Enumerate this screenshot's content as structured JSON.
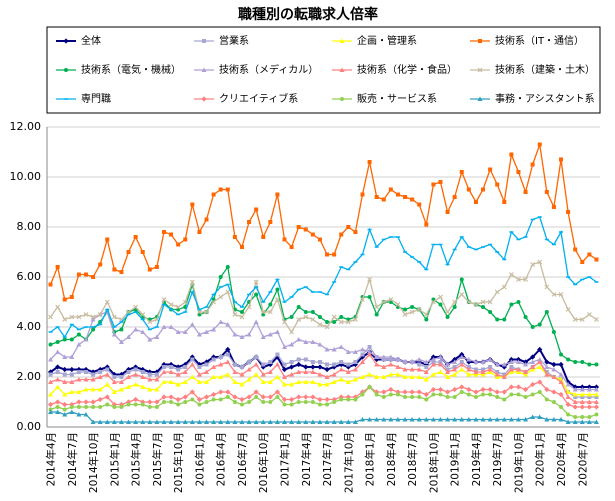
{
  "chart_data": {
    "type": "line",
    "title": "職種別の転職求人倍率",
    "categories": [
      "2014年4月",
      null,
      null,
      "2014年7月",
      null,
      null,
      "2014年10月",
      null,
      null,
      "2015年1月",
      null,
      null,
      "2015年4月",
      null,
      null,
      "2015年7月",
      null,
      null,
      "2015年10月",
      null,
      null,
      "2016年1月",
      null,
      null,
      "2016年4月",
      null,
      null,
      "2016年7月",
      null,
      null,
      "2016年10月",
      null,
      null,
      "2017年1月",
      null,
      null,
      "2017年4月",
      null,
      null,
      "2017年7月",
      null,
      null,
      "2017年10月",
      null,
      null,
      "2018年1月",
      null,
      null,
      "2018年4月",
      null,
      null,
      "2018年7月",
      null,
      null,
      "2018年10月",
      null,
      null,
      "2019年1月",
      null,
      null,
      "2019年4月",
      null,
      null,
      "2019年7月",
      null,
      null,
      "2019年10月",
      null,
      null,
      "2020年1月",
      null,
      null,
      "2020年4月",
      null,
      null,
      "2020年7月",
      null,
      null
    ],
    "ylim": [
      0,
      12
    ],
    "yticks": [
      {
        "value": 0,
        "label": "0.00"
      },
      {
        "value": 2,
        "label": "2.00"
      },
      {
        "value": 4,
        "label": "4.00"
      },
      {
        "value": 6,
        "label": "6.00"
      },
      {
        "value": 8,
        "label": "8.00"
      },
      {
        "value": 10,
        "label": "10.00"
      },
      {
        "value": 12,
        "label": "12.00"
      }
    ],
    "grid": true,
    "series": [
      {
        "name": "全体",
        "color": "#000080",
        "marker": "diamond",
        "values": [
          2.2,
          2.4,
          2.3,
          2.3,
          2.3,
          2.3,
          2.2,
          2.3,
          2.4,
          2.1,
          2.1,
          2.3,
          2.4,
          2.3,
          2.2,
          2.2,
          2.5,
          2.5,
          2.4,
          2.5,
          2.8,
          2.5,
          2.6,
          2.8,
          2.8,
          3.1,
          2.5,
          2.4,
          2.6,
          2.8,
          2.4,
          2.5,
          2.8,
          2.3,
          2.4,
          2.5,
          2.4,
          2.4,
          2.4,
          2.3,
          2.4,
          2.5,
          2.4,
          2.5,
          2.8,
          3.0,
          2.7,
          2.7,
          2.7,
          2.7,
          2.6,
          2.6,
          2.6,
          2.5,
          2.8,
          2.8,
          2.5,
          2.7,
          2.9,
          2.6,
          2.6,
          2.6,
          2.7,
          2.5,
          2.4,
          2.7,
          2.7,
          2.6,
          2.8,
          3.1,
          2.6,
          2.5,
          2.5,
          1.8,
          1.6,
          1.6,
          1.6,
          1.6
        ]
      },
      {
        "name": "営業系",
        "color": "#a6a6d2",
        "marker": "square",
        "values": [
          2.1,
          2.2,
          2.1,
          2.1,
          2.2,
          2.2,
          2.1,
          2.2,
          2.3,
          2.0,
          2.0,
          2.2,
          2.3,
          2.2,
          2.1,
          2.1,
          2.4,
          2.4,
          2.3,
          2.4,
          2.7,
          2.4,
          2.5,
          2.7,
          2.8,
          2.9,
          2.5,
          2.4,
          2.6,
          2.8,
          2.5,
          2.6,
          2.9,
          2.5,
          2.6,
          2.7,
          2.7,
          2.6,
          2.6,
          2.5,
          2.5,
          2.6,
          2.5,
          2.6,
          2.9,
          3.2,
          2.8,
          2.7,
          2.7,
          2.7,
          2.6,
          2.6,
          2.5,
          2.4,
          2.6,
          2.6,
          2.3,
          2.4,
          2.6,
          2.4,
          2.3,
          2.3,
          2.4,
          2.2,
          2.1,
          2.4,
          2.3,
          2.2,
          2.4,
          2.6,
          2.2,
          2.0,
          1.9,
          1.4,
          1.2,
          1.2,
          1.2,
          1.2
        ]
      },
      {
        "name": "企画・管理系",
        "color": "#ffff00",
        "marker": "triangle",
        "values": [
          1.3,
          1.6,
          1.3,
          1.4,
          1.4,
          1.5,
          1.5,
          1.5,
          1.7,
          1.4,
          1.5,
          1.6,
          1.7,
          1.6,
          1.5,
          1.5,
          1.8,
          1.8,
          1.7,
          1.8,
          2.0,
          1.8,
          1.8,
          2.0,
          2.0,
          2.1,
          1.8,
          1.7,
          1.9,
          2.1,
          1.8,
          1.8,
          2.0,
          1.7,
          1.7,
          1.8,
          1.8,
          1.8,
          1.7,
          1.7,
          1.8,
          1.9,
          1.8,
          1.9,
          2.0,
          2.1,
          2.0,
          2.0,
          2.1,
          2.1,
          2.0,
          2.0,
          2.0,
          1.9,
          2.1,
          2.2,
          2.0,
          2.1,
          2.3,
          2.1,
          2.1,
          2.1,
          2.2,
          2.0,
          2.0,
          2.2,
          2.2,
          2.1,
          2.3,
          2.4,
          2.1,
          2.0,
          1.9,
          1.4,
          1.3,
          1.3,
          1.3,
          1.3
        ]
      },
      {
        "name": "技術系（IT・通信）",
        "color": "#ff6600",
        "marker": "square",
        "values": [
          5.7,
          6.4,
          5.1,
          5.2,
          6.1,
          6.1,
          6.0,
          6.5,
          7.5,
          6.3,
          6.2,
          7.0,
          7.6,
          7.0,
          6.3,
          6.4,
          7.8,
          7.7,
          7.3,
          7.5,
          8.9,
          7.8,
          8.3,
          9.3,
          9.5,
          9.5,
          7.6,
          7.2,
          8.2,
          8.7,
          7.6,
          8.2,
          9.3,
          7.5,
          7.2,
          8.0,
          7.9,
          7.7,
          7.5,
          6.9,
          6.9,
          7.7,
          8.0,
          7.8,
          9.3,
          10.6,
          9.2,
          9.1,
          9.5,
          9.3,
          9.2,
          9.1,
          8.9,
          8.1,
          9.7,
          9.8,
          8.6,
          9.2,
          10.2,
          9.5,
          9.0,
          9.5,
          10.3,
          9.7,
          9.0,
          10.9,
          10.2,
          9.4,
          10.5,
          11.3,
          9.4,
          8.8,
          10.7,
          8.6,
          7.1,
          6.6,
          6.9,
          6.7
        ]
      },
      {
        "name": "技術系（電気・機械）",
        "color": "#00b050",
        "marker": "circle",
        "values": [
          3.3,
          3.4,
          3.5,
          3.5,
          3.7,
          3.5,
          3.9,
          4.2,
          4.6,
          3.8,
          3.9,
          4.6,
          4.7,
          4.4,
          4.3,
          4.4,
          5.0,
          4.7,
          4.7,
          4.8,
          5.7,
          4.5,
          4.6,
          5.1,
          6.0,
          6.4,
          4.7,
          4.6,
          5.0,
          5.3,
          4.5,
          4.9,
          5.5,
          4.3,
          4.4,
          4.8,
          4.6,
          4.6,
          4.4,
          4.2,
          4.2,
          4.4,
          4.3,
          4.4,
          5.2,
          5.2,
          4.5,
          5.0,
          5.0,
          4.8,
          4.7,
          4.8,
          4.7,
          4.3,
          5.1,
          4.9,
          4.4,
          4.8,
          5.9,
          5.0,
          4.9,
          4.8,
          4.6,
          4.3,
          4.3,
          4.9,
          5.0,
          4.4,
          4.0,
          4.1,
          4.6,
          3.8,
          2.9,
          2.7,
          2.6,
          2.6,
          2.5,
          2.5
        ]
      },
      {
        "name": "技術系（メディカル）",
        "color": "#b0a0d8",
        "marker": "triangle",
        "values": [
          2.7,
          3.0,
          2.8,
          2.8,
          3.3,
          3.5,
          4.3,
          4.5,
          4.6,
          3.7,
          3.4,
          3.6,
          3.9,
          3.8,
          3.5,
          3.6,
          4.0,
          4.0,
          3.8,
          3.8,
          4.1,
          3.7,
          3.8,
          3.9,
          4.2,
          4.1,
          3.7,
          3.6,
          3.7,
          4.2,
          3.6,
          3.7,
          3.8,
          3.2,
          3.3,
          3.5,
          3.4,
          3.4,
          3.3,
          3.1,
          3.1,
          3.2,
          3.0,
          3.0,
          3.1,
          3.0,
          2.8,
          2.8,
          2.8,
          2.7,
          2.6,
          2.6,
          2.7,
          2.6,
          2.7,
          2.8,
          2.5,
          2.6,
          2.8,
          2.7,
          2.6,
          2.6,
          2.7,
          2.5,
          2.5,
          2.6,
          2.6,
          2.5,
          2.6,
          2.7,
          2.4,
          2.3,
          2.1,
          1.7,
          1.5,
          1.5,
          1.5,
          1.5
        ]
      },
      {
        "name": "技術系（化学・食品）",
        "color": "#ff8080",
        "marker": "triangle",
        "values": [
          1.8,
          1.9,
          1.8,
          1.8,
          1.9,
          1.9,
          1.9,
          2.0,
          2.1,
          1.8,
          1.8,
          2.0,
          2.1,
          2.0,
          1.9,
          1.9,
          2.2,
          2.2,
          2.1,
          2.2,
          2.5,
          2.1,
          2.2,
          2.4,
          2.5,
          2.6,
          2.2,
          2.1,
          2.3,
          2.5,
          2.1,
          2.2,
          2.5,
          2.0,
          2.1,
          2.2,
          2.2,
          2.2,
          2.1,
          2.0,
          2.1,
          2.3,
          2.2,
          2.3,
          2.6,
          2.9,
          2.5,
          2.4,
          2.5,
          2.4,
          2.3,
          2.3,
          2.3,
          2.2,
          2.5,
          2.5,
          2.2,
          2.3,
          2.5,
          2.3,
          2.2,
          2.2,
          2.3,
          2.1,
          2.0,
          2.3,
          2.3,
          2.2,
          2.4,
          2.6,
          2.1,
          2.0,
          1.8,
          1.2,
          1.0,
          1.0,
          1.0,
          1.0
        ]
      },
      {
        "name": "技術系（建築・土木）",
        "color": "#c8bca0",
        "marker": "cross",
        "values": [
          4.4,
          4.8,
          4.3,
          4.4,
          4.4,
          4.5,
          4.4,
          4.5,
          5.0,
          4.4,
          4.3,
          4.6,
          4.8,
          4.5,
          4.2,
          4.3,
          5.1,
          4.9,
          4.8,
          5.0,
          5.8,
          4.6,
          4.6,
          5.0,
          5.2,
          5.4,
          4.5,
          4.4,
          4.8,
          5.8,
          4.6,
          4.6,
          5.1,
          4.2,
          3.8,
          4.3,
          4.4,
          4.3,
          4.1,
          4.0,
          4.4,
          4.2,
          4.2,
          4.3,
          5.1,
          5.9,
          4.8,
          5.0,
          5.1,
          4.9,
          4.5,
          4.6,
          4.7,
          4.5,
          5.0,
          5.2,
          4.6,
          5.0,
          5.3,
          5.0,
          4.9,
          5.0,
          5.0,
          5.4,
          5.6,
          6.1,
          5.9,
          5.9,
          6.5,
          6.6,
          5.6,
          5.3,
          5.3,
          4.7,
          4.3,
          4.3,
          4.5,
          4.3
        ]
      },
      {
        "name": "専門職",
        "color": "#00b0f0",
        "marker": "dash",
        "values": [
          3.8,
          4.0,
          3.6,
          4.1,
          3.9,
          4.0,
          4.0,
          4.1,
          4.7,
          4.0,
          4.2,
          4.5,
          4.6,
          4.3,
          3.9,
          4.0,
          4.9,
          4.7,
          4.5,
          4.6,
          5.4,
          4.7,
          4.8,
          5.3,
          5.6,
          5.7,
          5.0,
          4.8,
          5.3,
          5.6,
          5.0,
          5.4,
          5.9,
          5.0,
          5.2,
          5.5,
          5.6,
          5.4,
          5.4,
          5.3,
          5.8,
          6.4,
          6.3,
          6.6,
          6.9,
          7.9,
          7.2,
          7.5,
          7.6,
          7.6,
          7.0,
          6.8,
          6.6,
          6.3,
          7.3,
          7.3,
          6.5,
          7.1,
          7.6,
          7.2,
          7.1,
          7.2,
          7.3,
          7.0,
          6.7,
          7.8,
          7.5,
          7.6,
          8.3,
          8.4,
          7.5,
          7.3,
          7.8,
          6.0,
          5.7,
          5.9,
          6.0,
          5.8
        ]
      },
      {
        "name": "クリエイティブ系",
        "color": "#ff8080",
        "marker": "diamond",
        "values": [
          0.9,
          1.0,
          0.9,
          0.9,
          1.0,
          1.0,
          1.0,
          1.1,
          1.2,
          0.9,
          0.9,
          1.0,
          1.1,
          1.0,
          1.0,
          1.0,
          1.2,
          1.2,
          1.1,
          1.2,
          1.4,
          1.1,
          1.2,
          1.3,
          1.4,
          1.4,
          1.2,
          1.1,
          1.2,
          1.4,
          1.2,
          1.2,
          1.4,
          1.1,
          1.1,
          1.2,
          1.2,
          1.2,
          1.1,
          1.1,
          1.1,
          1.2,
          1.2,
          1.2,
          1.4,
          1.6,
          1.4,
          1.4,
          1.5,
          1.4,
          1.4,
          1.4,
          1.4,
          1.3,
          1.5,
          1.5,
          1.4,
          1.5,
          1.6,
          1.5,
          1.4,
          1.5,
          1.5,
          1.4,
          1.4,
          1.6,
          1.6,
          1.5,
          1.7,
          1.8,
          1.5,
          1.4,
          1.3,
          0.9,
          0.8,
          0.8,
          0.8,
          0.8
        ]
      },
      {
        "name": "販売・サービス系",
        "color": "#92d050",
        "marker": "circle",
        "values": [
          0.7,
          0.8,
          0.7,
          0.8,
          0.8,
          0.8,
          0.8,
          0.8,
          0.9,
          0.8,
          0.8,
          0.9,
          0.9,
          0.9,
          0.8,
          0.8,
          1.0,
          1.0,
          0.9,
          1.0,
          1.1,
          0.9,
          1.0,
          1.1,
          1.1,
          1.2,
          1.0,
          0.9,
          1.0,
          1.2,
          1.0,
          1.0,
          1.2,
          0.9,
          0.9,
          1.0,
          1.0,
          1.0,
          0.9,
          0.9,
          1.0,
          1.1,
          1.1,
          1.1,
          1.3,
          1.6,
          1.3,
          1.2,
          1.3,
          1.3,
          1.2,
          1.2,
          1.2,
          1.1,
          1.3,
          1.3,
          1.2,
          1.2,
          1.4,
          1.3,
          1.2,
          1.3,
          1.3,
          1.2,
          1.1,
          1.3,
          1.3,
          1.2,
          1.3,
          1.4,
          1.1,
          1.0,
          0.8,
          0.5,
          0.4,
          0.4,
          0.4,
          0.5
        ]
      },
      {
        "name": "事務・アシスタント系",
        "color": "#31a0c0",
        "marker": "triangle",
        "values": [
          0.6,
          0.6,
          0.5,
          0.6,
          0.5,
          0.5,
          0.2,
          0.2,
          0.2,
          0.2,
          0.2,
          0.2,
          0.2,
          0.2,
          0.2,
          0.2,
          0.2,
          0.2,
          0.2,
          0.2,
          0.2,
          0.2,
          0.2,
          0.2,
          0.2,
          0.2,
          0.2,
          0.2,
          0.2,
          0.2,
          0.2,
          0.2,
          0.2,
          0.2,
          0.2,
          0.2,
          0.2,
          0.2,
          0.2,
          0.2,
          0.2,
          0.2,
          0.2,
          0.2,
          0.3,
          0.3,
          0.3,
          0.3,
          0.3,
          0.3,
          0.3,
          0.3,
          0.3,
          0.3,
          0.3,
          0.3,
          0.3,
          0.3,
          0.3,
          0.3,
          0.3,
          0.3,
          0.3,
          0.3,
          0.3,
          0.3,
          0.3,
          0.3,
          0.4,
          0.4,
          0.3,
          0.3,
          0.3,
          0.2,
          0.2,
          0.2,
          0.2,
          0.2
        ]
      }
    ]
  }
}
